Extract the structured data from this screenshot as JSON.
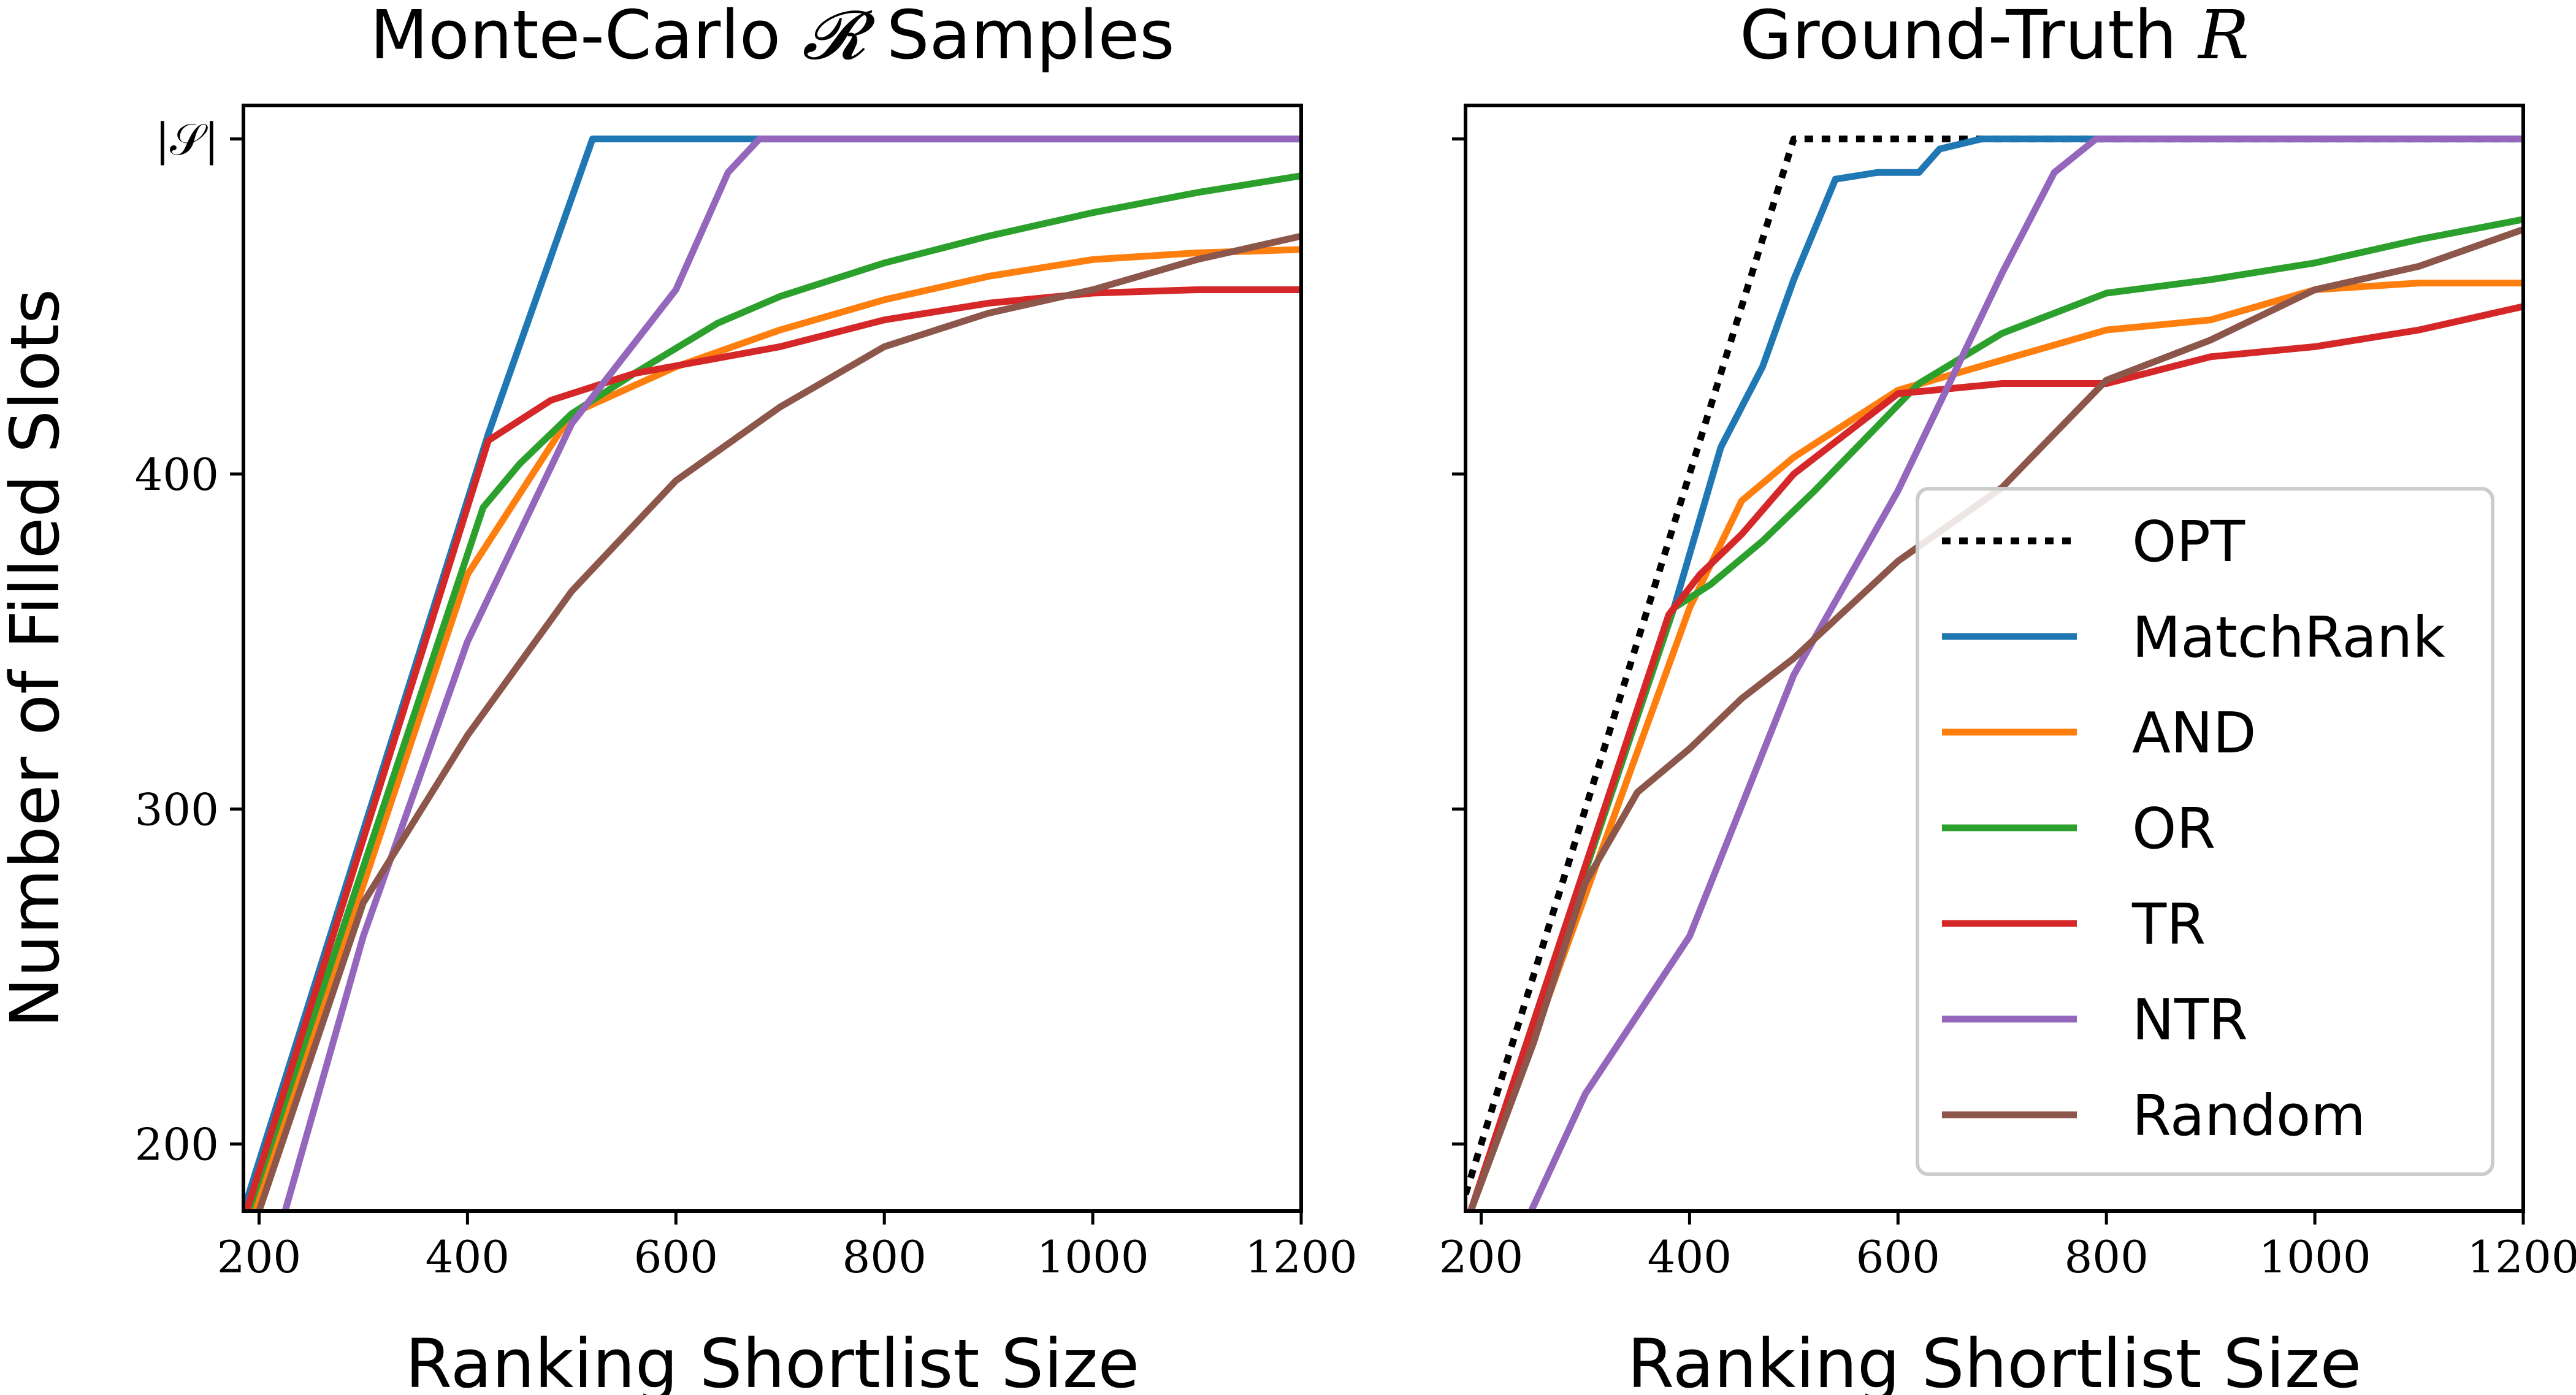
{
  "chart_data": [
    {
      "type": "line",
      "title": "Monte-Carlo 𝓡 Samples",
      "title_plain": "Monte-Carlo",
      "title_symbol": "𝓡",
      "title_suffix": "Samples",
      "xlabel": "Ranking Shortlist Size",
      "ylabel": "Number of Filled Slots",
      "xlim": [
        185,
        1200
      ],
      "ylim": [
        180,
        510
      ],
      "xticks": [
        200,
        400,
        600,
        800,
        1000,
        1200
      ],
      "yticks": [
        200,
        300,
        400,
        500
      ],
      "ytick_labels": [
        "200",
        "300",
        "400",
        "|𝒮|"
      ],
      "series": [
        {
          "name": "MatchRank",
          "color": "#1f77b4",
          "dash": "",
          "points": [
            [
              185,
              180
            ],
            [
              420,
              412
            ],
            [
              520,
              500
            ],
            [
              550,
              500
            ],
            [
              1200,
              500
            ]
          ]
        },
        {
          "name": "AND",
          "color": "#ff7f0e",
          "dash": "",
          "points": [
            [
              195,
              180
            ],
            [
              400,
              370
            ],
            [
              500,
              418
            ],
            [
              600,
              432
            ],
            [
              700,
              443
            ],
            [
              800,
              452
            ],
            [
              900,
              459
            ],
            [
              1000,
              464
            ],
            [
              1100,
              466
            ],
            [
              1200,
              467
            ]
          ]
        },
        {
          "name": "OR",
          "color": "#2ca02c",
          "dash": "",
          "points": [
            [
              190,
              180
            ],
            [
              415,
              390
            ],
            [
              450,
              403
            ],
            [
              500,
              418
            ],
            [
              560,
              430
            ],
            [
              640,
              445
            ],
            [
              700,
              453
            ],
            [
              800,
              463
            ],
            [
              900,
              471
            ],
            [
              1000,
              478
            ],
            [
              1100,
              484
            ],
            [
              1200,
              489
            ]
          ]
        },
        {
          "name": "TR",
          "color": "#d62728",
          "dash": "",
          "points": [
            [
              188,
              180
            ],
            [
              420,
              410
            ],
            [
              480,
              422
            ],
            [
              560,
              430
            ],
            [
              700,
              438
            ],
            [
              800,
              446
            ],
            [
              900,
              451
            ],
            [
              1000,
              454
            ],
            [
              1100,
              455
            ],
            [
              1200,
              455
            ]
          ]
        },
        {
          "name": "NTR",
          "color": "#9467bd",
          "dash": "",
          "points": [
            [
              225,
              180
            ],
            [
              300,
              262
            ],
            [
              400,
              350
            ],
            [
              500,
              415
            ],
            [
              600,
              455
            ],
            [
              650,
              490
            ],
            [
              680,
              500
            ],
            [
              1200,
              500
            ]
          ]
        },
        {
          "name": "Random",
          "color": "#8c564b",
          "dash": "",
          "points": [
            [
              200,
              180
            ],
            [
              300,
              272
            ],
            [
              400,
              322
            ],
            [
              500,
              365
            ],
            [
              600,
              398
            ],
            [
              700,
              420
            ],
            [
              800,
              438
            ],
            [
              900,
              448
            ],
            [
              1000,
              455
            ],
            [
              1100,
              464
            ],
            [
              1200,
              471
            ]
          ]
        }
      ]
    },
    {
      "type": "line",
      "title": "Ground-Truth R",
      "title_plain": "Ground-Truth",
      "title_symbol": "R",
      "xlabel": "Ranking Shortlist Size",
      "ylabel": "",
      "xlim": [
        185,
        1200
      ],
      "ylim": [
        180,
        510
      ],
      "xticks": [
        200,
        400,
        600,
        800,
        1000,
        1200
      ],
      "yticks": [
        200,
        300,
        400,
        500
      ],
      "ytick_labels": [
        "",
        "",
        "",
        ""
      ],
      "series": [
        {
          "name": "OPT",
          "color": "#000000",
          "dash": "dotted",
          "points": [
            [
              185,
              185
            ],
            [
              500,
              500
            ],
            [
              1200,
              500
            ]
          ]
        },
        {
          "name": "MatchRank",
          "color": "#1f77b4",
          "dash": "",
          "points": [
            [
              190,
              180
            ],
            [
              385,
              360
            ],
            [
              430,
              408
            ],
            [
              470,
              432
            ],
            [
              500,
              458
            ],
            [
              540,
              488
            ],
            [
              580,
              490
            ],
            [
              620,
              490
            ],
            [
              640,
              497
            ],
            [
              680,
              500
            ],
            [
              1200,
              500
            ]
          ]
        },
        {
          "name": "AND",
          "color": "#ff7f0e",
          "dash": "",
          "points": [
            [
              190,
              180
            ],
            [
              400,
              360
            ],
            [
              450,
              392
            ],
            [
              500,
              405
            ],
            [
              600,
              425
            ],
            [
              700,
              434
            ],
            [
              800,
              443
            ],
            [
              900,
              446
            ],
            [
              1000,
              455
            ],
            [
              1100,
              457
            ],
            [
              1200,
              457
            ]
          ]
        },
        {
          "name": "OR",
          "color": "#2ca02c",
          "dash": "",
          "points": [
            [
              190,
              180
            ],
            [
              385,
              360
            ],
            [
              420,
              367
            ],
            [
              470,
              380
            ],
            [
              520,
              395
            ],
            [
              620,
              427
            ],
            [
              700,
              442
            ],
            [
              800,
              454
            ],
            [
              900,
              458
            ],
            [
              1000,
              463
            ],
            [
              1100,
              470
            ],
            [
              1200,
              476
            ]
          ]
        },
        {
          "name": "TR",
          "color": "#d62728",
          "dash": "",
          "points": [
            [
              190,
              180
            ],
            [
              380,
              358
            ],
            [
              410,
              370
            ],
            [
              450,
              382
            ],
            [
              500,
              400
            ],
            [
              600,
              424
            ],
            [
              700,
              427
            ],
            [
              800,
              427
            ],
            [
              900,
              435
            ],
            [
              1000,
              438
            ],
            [
              1100,
              443
            ],
            [
              1200,
              450
            ]
          ]
        },
        {
          "name": "NTR",
          "color": "#9467bd",
          "dash": "",
          "points": [
            [
              248,
              180
            ],
            [
              300,
              215
            ],
            [
              400,
              262
            ],
            [
              500,
              340
            ],
            [
              600,
              395
            ],
            [
              700,
              460
            ],
            [
              750,
              490
            ],
            [
              790,
              500
            ],
            [
              1200,
              500
            ]
          ]
        },
        {
          "name": "Random",
          "color": "#8c564b",
          "dash": "",
          "points": [
            [
              190,
              180
            ],
            [
              250,
              230
            ],
            [
              300,
              278
            ],
            [
              350,
              305
            ],
            [
              400,
              318
            ],
            [
              450,
              333
            ],
            [
              500,
              345
            ],
            [
              600,
              374
            ],
            [
              700,
              396
            ],
            [
              800,
              428
            ],
            [
              900,
              440
            ],
            [
              1000,
              455
            ],
            [
              1100,
              462
            ],
            [
              1200,
              473
            ]
          ]
        }
      ]
    }
  ],
  "legend": {
    "position": "lower-right",
    "entries": [
      {
        "label": "OPT",
        "color": "#000000",
        "dash": "dotted"
      },
      {
        "label": "MatchRank",
        "color": "#1f77b4",
        "dash": ""
      },
      {
        "label": "AND",
        "color": "#ff7f0e",
        "dash": ""
      },
      {
        "label": "OR",
        "color": "#2ca02c",
        "dash": ""
      },
      {
        "label": "TR",
        "color": "#d62728",
        "dash": ""
      },
      {
        "label": "NTR",
        "color": "#9467bd",
        "dash": ""
      },
      {
        "label": "Random",
        "color": "#8c564b",
        "dash": ""
      }
    ]
  }
}
